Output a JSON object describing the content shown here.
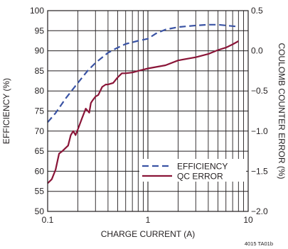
{
  "chart_data": {
    "type": "line",
    "xlabel": "CHARGE CURRENT (A)",
    "ylabel": "EFFICIENCY (%)",
    "y2label": "COULOMB COUNTER ERROR (%)",
    "x_scale": "log",
    "xlim": [
      0.1,
      10
    ],
    "ylim": [
      50,
      100
    ],
    "y2lim": [
      -2.0,
      0.5
    ],
    "x_ticks": [
      0.1,
      1,
      10
    ],
    "x_tick_labels": [
      "0.1",
      "1",
      "10"
    ],
    "y_ticks": [
      50,
      55,
      60,
      65,
      70,
      75,
      80,
      85,
      90,
      95,
      100
    ],
    "y_tick_labels": [
      "50",
      "55",
      "60",
      "65",
      "70",
      "75",
      "80",
      "85",
      "90",
      "95",
      "100"
    ],
    "y2_ticks": [
      -2.0,
      -1.5,
      -1.0,
      -0.5,
      0.0,
      0.5
    ],
    "y2_tick_labels": [
      "−2.0",
      "−1.5",
      "−1.0",
      "−0.5",
      "0.0",
      "0.5"
    ],
    "grid": true,
    "legend_position": "bottom-right",
    "series": [
      {
        "name": "EFFICIENCY",
        "axis": "left",
        "color": "#3a53a4",
        "dash": true,
        "x": [
          0.1,
          0.12,
          0.15,
          0.2,
          0.25,
          0.3,
          0.4,
          0.5,
          0.6,
          0.8,
          1.0,
          1.2,
          1.5,
          2.0,
          3.0,
          4.0,
          5.0,
          6.0,
          8.0
        ],
        "y": [
          72.2,
          74.5,
          78.0,
          82.0,
          85.0,
          87.0,
          89.5,
          90.8,
          91.7,
          92.5,
          93.0,
          94.3,
          95.3,
          95.9,
          96.3,
          96.5,
          96.5,
          96.3,
          96.0
        ]
      },
      {
        "name": "QC ERROR",
        "axis": "right",
        "color": "#8a1538",
        "dash": false,
        "x": [
          0.1,
          0.11,
          0.12,
          0.13,
          0.14,
          0.16,
          0.17,
          0.18,
          0.19,
          0.2,
          0.22,
          0.24,
          0.26,
          0.27,
          0.28,
          0.3,
          0.32,
          0.35,
          0.38,
          0.4,
          0.45,
          0.5,
          0.55,
          0.6,
          0.7,
          0.8,
          1.0,
          1.5,
          2.0,
          3.0,
          4.0,
          5.0,
          6.0,
          7.0,
          8.0
        ],
        "y": [
          -1.65,
          -1.6,
          -1.48,
          -1.28,
          -1.25,
          -1.18,
          -1.05,
          -1.0,
          -1.05,
          -0.98,
          -0.84,
          -0.72,
          -0.77,
          -0.65,
          -0.62,
          -0.57,
          -0.55,
          -0.45,
          -0.42,
          -0.42,
          -0.4,
          -0.33,
          -0.28,
          -0.28,
          -0.27,
          -0.25,
          -0.22,
          -0.18,
          -0.12,
          -0.08,
          -0.04,
          0.01,
          0.04,
          0.08,
          0.12
        ]
      }
    ],
    "footnote": "4015 TA01b"
  }
}
